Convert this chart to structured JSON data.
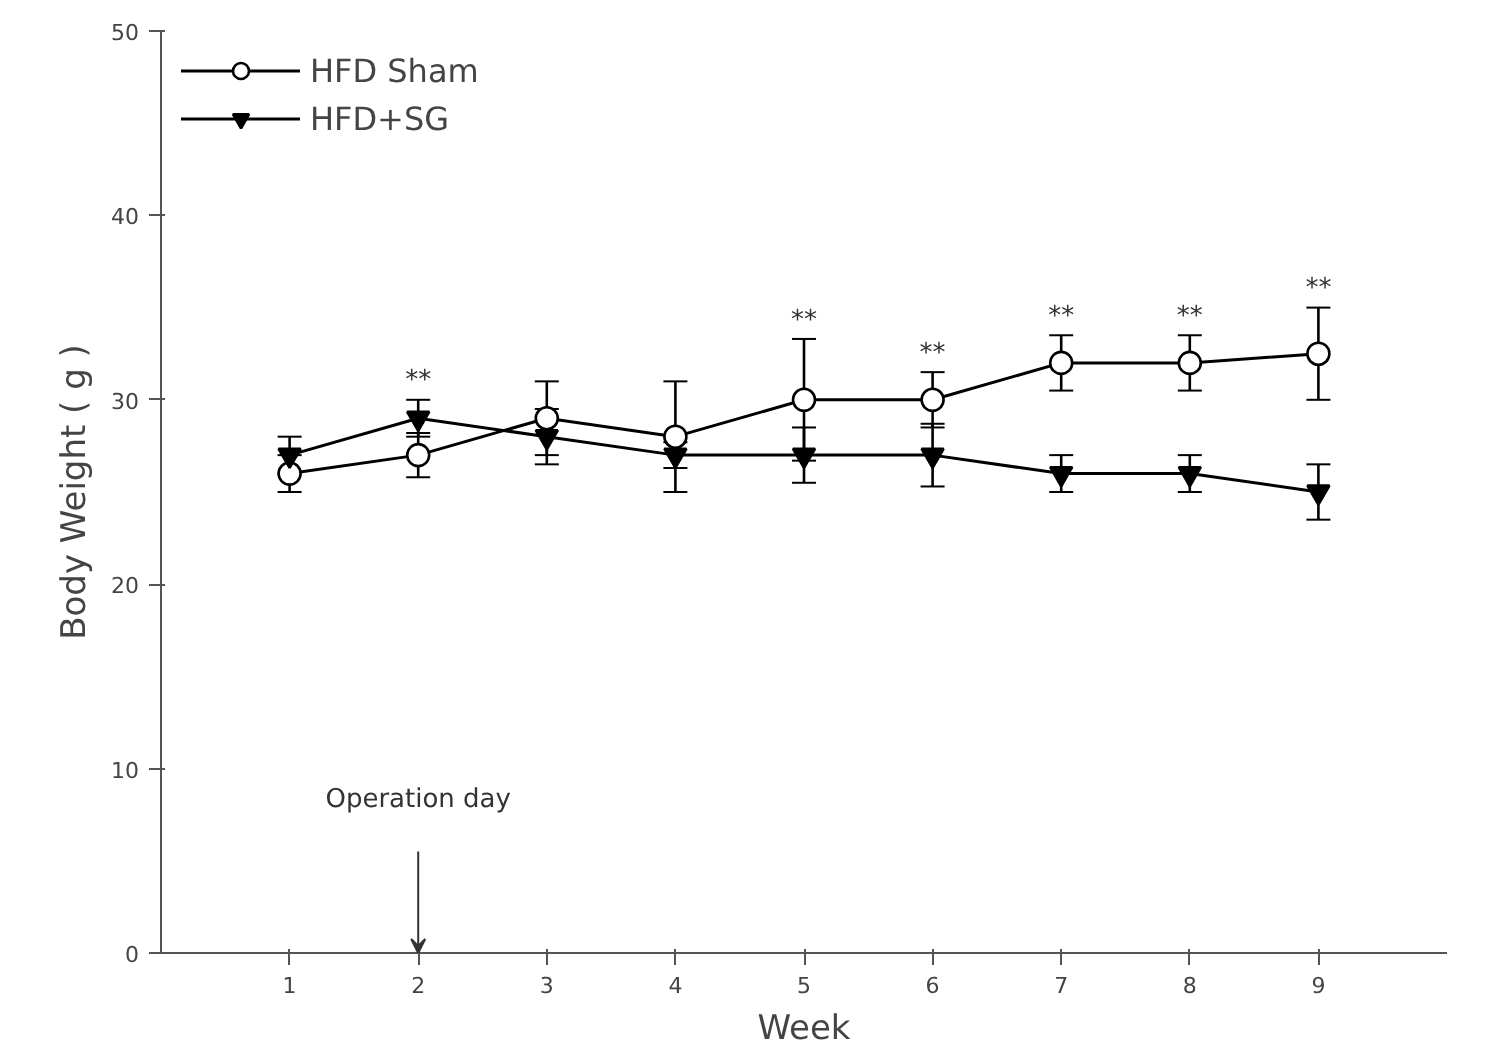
{
  "chart_data": {
    "type": "line",
    "xlabel": "Week",
    "ylabel": "Body Weight ( g )",
    "x": [
      1,
      2,
      3,
      4,
      5,
      6,
      7,
      8,
      9
    ],
    "series": [
      {
        "name": "HFD Sham",
        "color": "#000000",
        "marker": "circle",
        "values": [
          26,
          27,
          29,
          28,
          30,
          30,
          32,
          32,
          32.5
        ],
        "errors": [
          1,
          1.2,
          2,
          3,
          3.3,
          1.5,
          1.5,
          1.5,
          2.5
        ]
      },
      {
        "name": "HFD+SG",
        "color": "#000000",
        "marker": "triangle",
        "values": [
          27,
          29,
          28,
          27,
          27,
          27,
          26,
          26,
          25
        ],
        "errors": [
          1,
          1,
          1.5,
          0.7,
          1.5,
          1.7,
          1,
          1,
          1.5
        ]
      }
    ],
    "xlim": [
      0,
      10
    ],
    "xticks": [
      1,
      2,
      3,
      4,
      5,
      6,
      7,
      8,
      9
    ],
    "ylim": [
      0,
      50
    ],
    "yticks": [
      0,
      10,
      20,
      30,
      40,
      50
    ],
    "grid": false,
    "legend": "top left",
    "line_style": "solid",
    "annotations": [
      {
        "text": "**",
        "x": 2,
        "y": 29
      },
      {
        "text": "**",
        "x": 5,
        "y": 30
      },
      {
        "text": "**",
        "x": 6,
        "y": 30
      },
      {
        "text": "**",
        "x": 7,
        "y": 32
      },
      {
        "text": "**",
        "x": 8,
        "y": 32
      },
      {
        "text": "**",
        "x": 9,
        "y": 32.5
      },
      "Operation day"
    ]
  }
}
